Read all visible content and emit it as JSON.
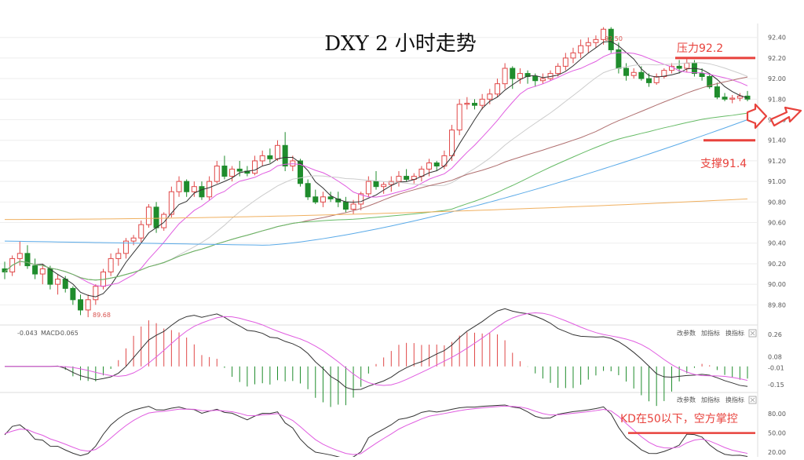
{
  "chart_data": [
    {
      "type": "candlestick",
      "title": "DXY 2 小时走势",
      "ylim": [
        89.65,
        92.52
      ],
      "y_ticks": [
        "92.40",
        "92.20",
        "92.00",
        "91.80",
        "91.60",
        "91.40",
        "91.20",
        "91.00",
        "90.80",
        "90.60",
        "90.40",
        "90.20",
        "90.00",
        "89.80"
      ],
      "grid": true,
      "annotations": [
        {
          "text": "压力92.2",
          "level": 92.2,
          "kind": "resistance"
        },
        {
          "text": "支撑91.4",
          "level": 91.4,
          "kind": "support"
        }
      ],
      "price_labels": {
        "high": "92.50",
        "low": "89.68"
      },
      "candles": [
        [
          90.15,
          90.22,
          90.05,
          90.12
        ],
        [
          90.12,
          90.28,
          90.08,
          90.25
        ],
        [
          90.25,
          90.42,
          90.18,
          90.3
        ],
        [
          90.3,
          90.38,
          90.15,
          90.18
        ],
        [
          90.18,
          90.25,
          90.05,
          90.1
        ],
        [
          90.1,
          90.2,
          90.0,
          90.15
        ],
        [
          90.15,
          90.18,
          89.95,
          90.0
        ],
        [
          90.0,
          90.1,
          89.9,
          90.05
        ],
        [
          90.05,
          90.08,
          89.92,
          89.96
        ],
        [
          89.96,
          89.98,
          89.8,
          89.85
        ],
        [
          89.85,
          89.9,
          89.7,
          89.75
        ],
        [
          89.75,
          89.9,
          89.68,
          89.85
        ],
        [
          89.85,
          90.0,
          89.8,
          89.98
        ],
        [
          89.98,
          90.15,
          89.95,
          90.12
        ],
        [
          90.12,
          90.3,
          90.08,
          90.25
        ],
        [
          90.25,
          90.35,
          90.18,
          90.3
        ],
        [
          90.3,
          90.45,
          90.25,
          90.42
        ],
        [
          90.42,
          90.48,
          90.38,
          90.45
        ],
        [
          90.45,
          90.62,
          90.4,
          90.58
        ],
        [
          90.58,
          90.78,
          90.55,
          90.75
        ],
        [
          90.75,
          90.8,
          90.5,
          90.55
        ],
        [
          90.55,
          90.7,
          90.52,
          90.68
        ],
        [
          90.68,
          90.95,
          90.65,
          90.9
        ],
        [
          90.9,
          91.05,
          90.85,
          91.0
        ],
        [
          91.0,
          91.02,
          90.85,
          90.9
        ],
        [
          90.9,
          91.0,
          90.85,
          90.95
        ],
        [
          90.95,
          91.0,
          90.82,
          90.85
        ],
        [
          90.85,
          91.05,
          90.82,
          91.0
        ],
        [
          91.0,
          91.2,
          90.98,
          91.15
        ],
        [
          91.15,
          91.25,
          91.02,
          91.05
        ],
        [
          91.05,
          91.15,
          91.0,
          91.12
        ],
        [
          91.12,
          91.2,
          91.05,
          91.1
        ],
        [
          91.1,
          91.15,
          91.05,
          91.08
        ],
        [
          91.08,
          91.25,
          91.06,
          91.2
        ],
        [
          91.2,
          91.3,
          91.15,
          91.25
        ],
        [
          91.25,
          91.32,
          91.18,
          91.22
        ],
        [
          91.22,
          91.4,
          91.2,
          91.35
        ],
        [
          91.35,
          91.48,
          91.1,
          91.15
        ],
        [
          91.15,
          91.25,
          91.1,
          91.2
        ],
        [
          91.2,
          91.22,
          90.95,
          90.98
        ],
        [
          90.98,
          91.02,
          90.82,
          90.85
        ],
        [
          90.85,
          90.92,
          90.78,
          90.8
        ],
        [
          90.8,
          90.9,
          90.75,
          90.85
        ],
        [
          90.85,
          90.9,
          90.8,
          90.83
        ],
        [
          90.83,
          90.9,
          90.75,
          90.8
        ],
        [
          90.8,
          90.85,
          90.7,
          90.73
        ],
        [
          90.73,
          90.82,
          90.68,
          90.78
        ],
        [
          90.78,
          90.9,
          90.72,
          90.88
        ],
        [
          90.88,
          91.05,
          90.85,
          91.0
        ],
        [
          91.0,
          91.1,
          90.92,
          90.95
        ],
        [
          90.95,
          91.0,
          90.88,
          90.97
        ],
        [
          90.97,
          91.05,
          90.9,
          91.0
        ],
        [
          91.0,
          91.1,
          90.95,
          91.05
        ],
        [
          91.05,
          91.12,
          91.0,
          91.02
        ],
        [
          91.02,
          91.08,
          90.98,
          91.05
        ],
        [
          91.05,
          91.15,
          91.0,
          91.12
        ],
        [
          91.12,
          91.22,
          91.05,
          91.18
        ],
        [
          91.18,
          91.2,
          91.1,
          91.15
        ],
        [
          91.15,
          91.3,
          91.12,
          91.25
        ],
        [
          91.25,
          91.55,
          91.2,
          91.5
        ],
        [
          91.5,
          91.8,
          91.45,
          91.75
        ],
        [
          91.75,
          91.82,
          91.7,
          91.76
        ],
        [
          91.76,
          91.8,
          91.7,
          91.74
        ],
        [
          91.74,
          91.85,
          91.7,
          91.8
        ],
        [
          91.8,
          91.9,
          91.75,
          91.85
        ],
        [
          91.85,
          92.0,
          91.82,
          91.95
        ],
        [
          91.95,
          92.15,
          91.9,
          92.1
        ],
        [
          92.1,
          92.12,
          91.9,
          92.0
        ],
        [
          92.0,
          92.1,
          91.95,
          92.05
        ],
        [
          92.05,
          92.08,
          91.95,
          92.02
        ],
        [
          92.02,
          92.05,
          91.92,
          91.98
        ],
        [
          91.98,
          92.05,
          91.95,
          92.0
        ],
        [
          92.0,
          92.08,
          91.98,
          92.05
        ],
        [
          92.05,
          92.15,
          92.02,
          92.12
        ],
        [
          92.12,
          92.25,
          92.08,
          92.2
        ],
        [
          92.2,
          92.3,
          92.15,
          92.25
        ],
        [
          92.25,
          92.38,
          92.2,
          92.32
        ],
        [
          92.32,
          92.4,
          92.25,
          92.35
        ],
        [
          92.35,
          92.42,
          92.3,
          92.38
        ],
        [
          92.38,
          92.5,
          92.33,
          92.48
        ],
        [
          92.48,
          92.5,
          92.25,
          92.28
        ],
        [
          92.28,
          92.35,
          92.05,
          92.1
        ],
        [
          92.1,
          92.15,
          91.98,
          92.03
        ],
        [
          92.03,
          92.1,
          92.0,
          92.06
        ],
        [
          92.06,
          92.12,
          91.98,
          92.0
        ],
        [
          92.0,
          92.05,
          91.92,
          91.96
        ],
        [
          91.96,
          92.05,
          91.94,
          92.02
        ],
        [
          92.02,
          92.1,
          92.0,
          92.08
        ],
        [
          92.08,
          92.15,
          92.05,
          92.12
        ],
        [
          92.12,
          92.18,
          92.05,
          92.1
        ],
        [
          92.1,
          92.2,
          92.06,
          92.15
        ],
        [
          92.15,
          92.18,
          92.02,
          92.05
        ],
        [
          92.05,
          92.1,
          91.98,
          92.02
        ],
        [
          92.02,
          92.05,
          91.9,
          91.92
        ],
        [
          91.92,
          91.96,
          91.8,
          91.82
        ],
        [
          91.82,
          91.86,
          91.78,
          91.8
        ],
        [
          91.8,
          91.84,
          91.76,
          91.81
        ],
        [
          91.81,
          91.86,
          91.78,
          91.83
        ],
        [
          91.83,
          91.88,
          91.78,
          91.8
        ]
      ],
      "moving_averages": [
        {
          "color": "#333333",
          "window": 5
        },
        {
          "color": "#e05ce0",
          "window": 10
        },
        {
          "color": "#cccccc",
          "window": 20
        },
        {
          "color": "#b07070",
          "window": 40
        },
        {
          "color": "#66bb66",
          "window": 60
        },
        {
          "color": "#5aaae8",
          "start": 90.42,
          "dip": 90.38,
          "end": 91.6
        },
        {
          "color": "#f0b060",
          "start": 90.63,
          "end": 90.83
        }
      ]
    },
    {
      "type": "macd",
      "title_text": "MACD",
      "values_text": "-0.043",
      "values_text2": "-0.065",
      "controls": [
        "改参数",
        "加指标",
        "换指标"
      ],
      "y_ticks": [
        "0.26",
        "0.08",
        "-0.01",
        "-0.15"
      ],
      "ylim": [
        -0.2,
        0.3
      ]
    },
    {
      "type": "kd",
      "controls": [
        "改参数",
        "加指标",
        "换指标"
      ],
      "y_ticks": [
        "80.00",
        "50.00",
        "20.00"
      ],
      "ylim": [
        15,
        95
      ],
      "annotation": {
        "text": "KD在50以下，空方掌控",
        "level": 50
      }
    }
  ],
  "colors": {
    "up": "#e04848",
    "down": "#1f8c2c",
    "annotation": "#e8423c",
    "grid": "#eeeeee"
  },
  "icons": [
    "close-icon",
    "arrow-right-icon"
  ]
}
